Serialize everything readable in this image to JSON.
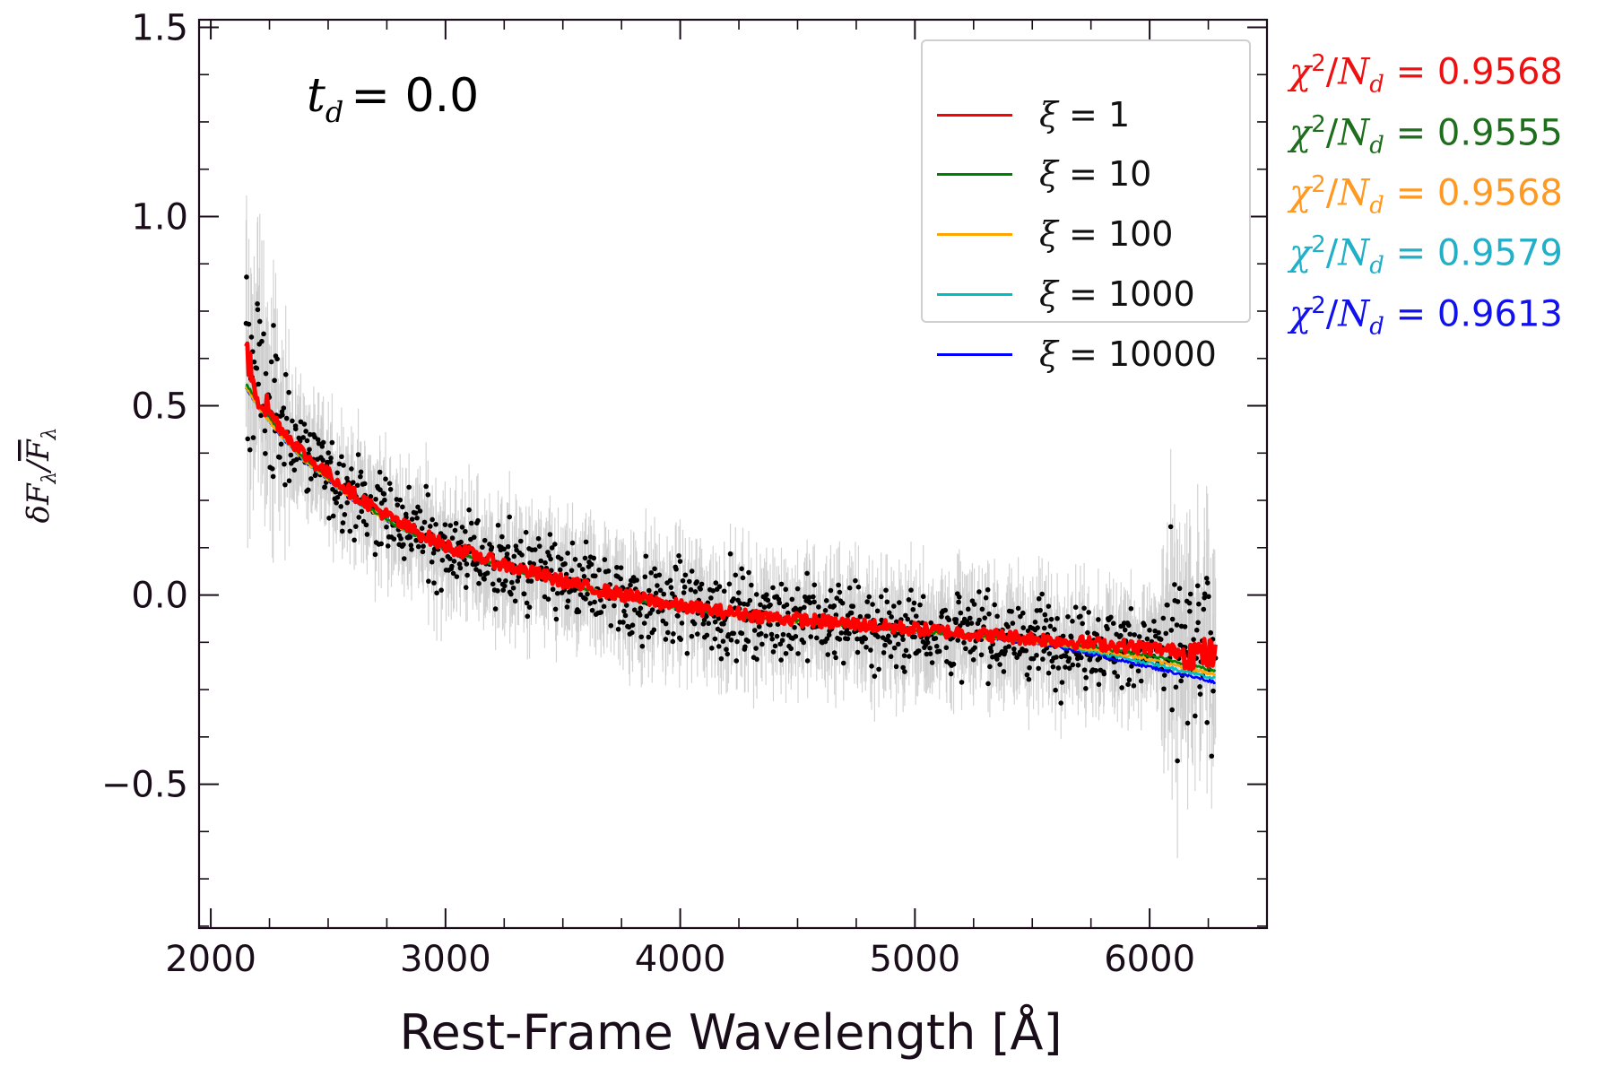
{
  "chart_data": {
    "type": "scatter",
    "xlabel": "Rest-Frame Wavelength [Å]",
    "ylabel": "δF_λ/F̄_λ",
    "annotation": {
      "symbol": "t",
      "subscript": "d",
      "text": "= 0.0"
    },
    "xlim": [
      1950,
      6500
    ],
    "ylim": [
      -0.88,
      1.52
    ],
    "xticks": [
      2000,
      3000,
      4000,
      5000,
      6000
    ],
    "xtick_labels": [
      "2000",
      "3000",
      "4000",
      "5000",
      "6000"
    ],
    "yticks": [
      -0.5,
      0.0,
      0.5,
      1.0,
      1.5
    ],
    "ytick_labels": [
      "−0.5",
      "0.0",
      "0.5",
      "1.0",
      "1.5"
    ],
    "grid": false,
    "legend_placement": "top-right",
    "observed": {
      "marker_color": "#000000",
      "errorbar_color": "#c8c8c8",
      "x_range": [
        2150,
        6280
      ],
      "points": [
        [
          2150,
          0.58
        ],
        [
          2200,
          0.62
        ],
        [
          2250,
          0.49
        ],
        [
          2300,
          0.45
        ],
        [
          2400,
          0.38
        ],
        [
          2500,
          0.32
        ],
        [
          2600,
          0.27
        ],
        [
          2700,
          0.23
        ],
        [
          2800,
          0.19
        ],
        [
          2900,
          0.16
        ],
        [
          3000,
          0.13
        ],
        [
          3200,
          0.09
        ],
        [
          3400,
          0.05
        ],
        [
          3600,
          0.02
        ],
        [
          3800,
          -0.01
        ],
        [
          4000,
          -0.03
        ],
        [
          4200,
          -0.05
        ],
        [
          4400,
          -0.06
        ],
        [
          4600,
          -0.07
        ],
        [
          4800,
          -0.08
        ],
        [
          5000,
          -0.09
        ],
        [
          5200,
          -0.1
        ],
        [
          5400,
          -0.11
        ],
        [
          5600,
          -0.12
        ],
        [
          5800,
          -0.13
        ],
        [
          6000,
          -0.15
        ],
        [
          6100,
          -0.15
        ],
        [
          6200,
          -0.17
        ],
        [
          6280,
          -0.17
        ]
      ]
    },
    "series": [
      {
        "name": "ξ = 1",
        "color": "#ff0000",
        "x": [
          2150,
          2200,
          2300,
          2400,
          2600,
          2800,
          3000,
          3300,
          3600,
          4000,
          4400,
          4800,
          5200,
          5600,
          6000,
          6280
        ],
        "y": [
          0.64,
          0.53,
          0.44,
          0.37,
          0.27,
          0.19,
          0.13,
          0.07,
          0.02,
          -0.03,
          -0.06,
          -0.08,
          -0.1,
          -0.12,
          -0.14,
          -0.16
        ]
      },
      {
        "name": "ξ = 10",
        "color": "#008000",
        "x": [
          2150,
          2200,
          2300,
          2400,
          2600,
          2800,
          3000,
          3300,
          3600,
          4000,
          4400,
          4800,
          5200,
          5600,
          6000,
          6280
        ],
        "y": [
          0.56,
          0.51,
          0.43,
          0.36,
          0.26,
          0.18,
          0.12,
          0.065,
          0.015,
          -0.035,
          -0.065,
          -0.085,
          -0.105,
          -0.125,
          -0.16,
          -0.2
        ]
      },
      {
        "name": "ξ = 100",
        "color": "#ffa500",
        "x": [
          2150,
          2200,
          2300,
          2400,
          2600,
          2800,
          3000,
          3300,
          3600,
          4000,
          4400,
          4800,
          5200,
          5600,
          6000,
          6280
        ],
        "y": [
          0.55,
          0.5,
          0.42,
          0.355,
          0.255,
          0.18,
          0.12,
          0.065,
          0.015,
          -0.035,
          -0.065,
          -0.085,
          -0.105,
          -0.13,
          -0.17,
          -0.21
        ]
      },
      {
        "name": "ξ = 1000",
        "color": "#00bfbf",
        "x": [
          2150,
          2200,
          2300,
          2400,
          2600,
          2800,
          3000,
          3300,
          3600,
          4000,
          4400,
          4800,
          5200,
          5600,
          6000,
          6280
        ],
        "y": [
          0.55,
          0.5,
          0.42,
          0.355,
          0.255,
          0.18,
          0.12,
          0.065,
          0.015,
          -0.035,
          -0.065,
          -0.085,
          -0.105,
          -0.13,
          -0.18,
          -0.22
        ]
      },
      {
        "name": "ξ = 10000",
        "color": "#0000ff",
        "x": [
          2150,
          2200,
          2300,
          2400,
          2600,
          2800,
          3000,
          3300,
          3600,
          4000,
          4400,
          4800,
          5200,
          5600,
          6000,
          6280
        ],
        "y": [
          0.55,
          0.5,
          0.42,
          0.355,
          0.255,
          0.18,
          0.12,
          0.065,
          0.015,
          -0.035,
          -0.065,
          -0.085,
          -0.105,
          -0.135,
          -0.19,
          -0.23
        ]
      }
    ],
    "legend": [
      {
        "prefix": "ξ",
        "text": "= 1",
        "color": "#ff0000"
      },
      {
        "prefix": "ξ",
        "text": "= 10",
        "color": "#008000"
      },
      {
        "prefix": "ξ",
        "text": "= 100",
        "color": "#ffa500"
      },
      {
        "prefix": "ξ",
        "text": "= 1000",
        "color": "#00bfbf"
      },
      {
        "prefix": "ξ",
        "text": "= 10000",
        "color": "#0000ff"
      }
    ],
    "chi2_labels": [
      {
        "value": "= 0.9568",
        "color": "#ee1111"
      },
      {
        "value": "= 0.9555",
        "color": "#1e6e1e"
      },
      {
        "value": "= 0.9568",
        "color": "#ff9922"
      },
      {
        "value": "= 0.9579",
        "color": "#22b0c8"
      },
      {
        "value": "= 0.9613",
        "color": "#1111ee"
      }
    ],
    "chi2_symbol": {
      "chi": "χ",
      "power": "2",
      "n": "N",
      "sub": "d"
    },
    "colors": {
      "axes": "#1a0d1a",
      "text": "#1a0d1a"
    }
  }
}
